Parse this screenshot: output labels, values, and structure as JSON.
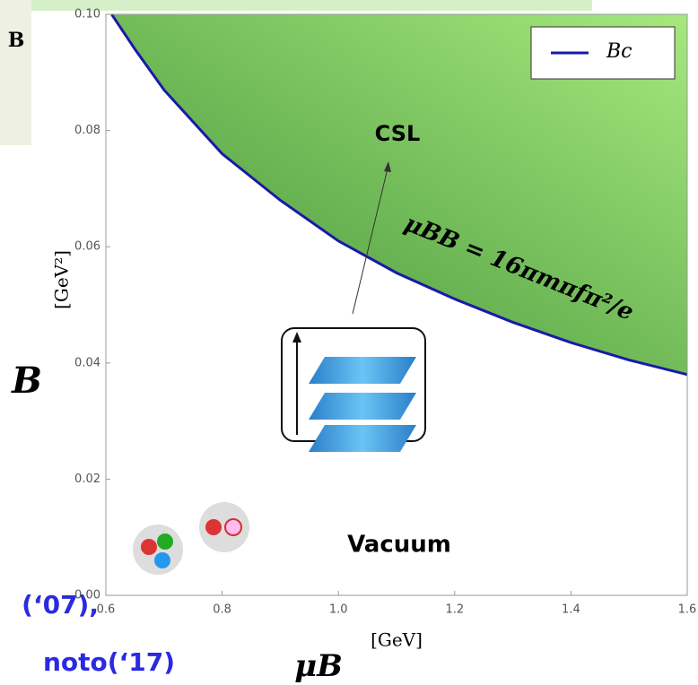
{
  "chart_data": {
    "type": "line",
    "x": [
      0.61,
      0.65,
      0.7,
      0.8,
      0.9,
      1.0,
      1.1,
      1.2,
      1.3,
      1.4,
      1.5,
      1.6
    ],
    "series": [
      {
        "name": "Bc",
        "color": "#1a1aa8",
        "fill": "#5fb04a",
        "values": [
          0.1,
          0.094,
          0.087,
          0.076,
          0.068,
          0.061,
          0.0555,
          0.051,
          0.047,
          0.0435,
          0.0405,
          0.038
        ]
      }
    ],
    "xlim": [
      0.6,
      1.6
    ],
    "ylim": [
      0,
      0.1
    ],
    "xticks": [
      0.6,
      0.8,
      {
        "value": 1,
        "label": "1.0"
      },
      1.2,
      1.4,
      1.6
    ],
    "yticks": [
      {
        "value": 0,
        "label": "0.00"
      },
      0.02,
      0.04,
      0.06,
      0.08,
      {
        "value": 0.1,
        "label": "0.10"
      }
    ],
    "x_label": "[GeV]",
    "y_label": "[GeV²]",
    "legend": "top-right",
    "annotations": {
      "region_above": "CSL",
      "region_below": "Vacuum",
      "formula": "μBB = 16πmπfπ²/e",
      "big_y": "B",
      "big_x": "μB",
      "slide_box": "B",
      "ref1": "(‘07),",
      "ref2": "noto(‘17)"
    }
  }
}
